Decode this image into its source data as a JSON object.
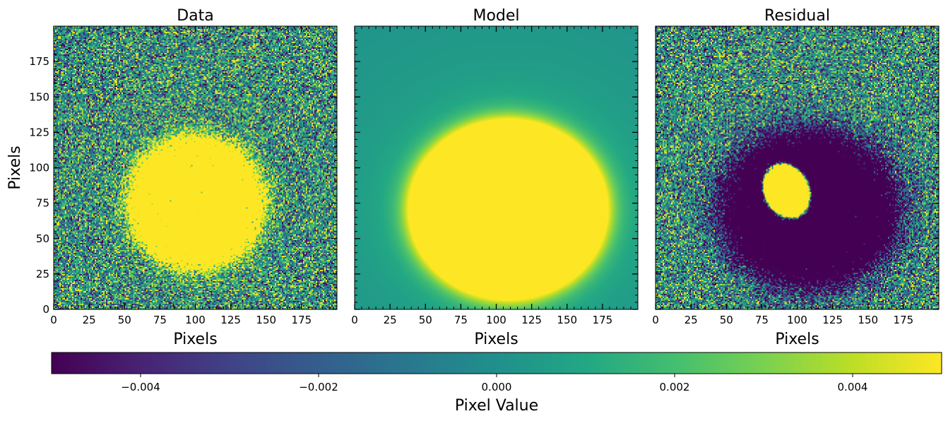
{
  "colors": {
    "vmin_color": "#440154",
    "mid_color": "#21918c",
    "vmax_color": "#fde725"
  },
  "chart_data": [
    {
      "type": "heatmap",
      "title": "Data",
      "xlabel": "Pixels",
      "ylabel": "Pixels",
      "xlim": [
        0,
        199
      ],
      "ylim": [
        0,
        199
      ],
      "xticks": [
        0,
        25,
        50,
        75,
        100,
        125,
        150,
        175
      ],
      "yticks": [
        0,
        25,
        50,
        75,
        100,
        125,
        150,
        175
      ],
      "colormap": "viridis",
      "vmin": -0.005,
      "vmax": 0.005,
      "shape": [
        200,
        200
      ],
      "description_component": {
        "kind": "noisy saturated disk",
        "center_x": 100,
        "center_y": 75,
        "radius_x": 48,
        "radius_y": 47
      }
    },
    {
      "type": "heatmap",
      "title": "Model",
      "xlabel": "Pixels",
      "ylabel": "",
      "xlim": [
        0,
        199
      ],
      "ylim": [
        0,
        199
      ],
      "xticks": [
        0,
        25,
        50,
        75,
        100,
        125,
        150,
        175
      ],
      "yticks": [],
      "colormap": "viridis",
      "vmin": -0.005,
      "vmax": 0.005,
      "shape": [
        200,
        200
      ],
      "description_component": {
        "kind": "smooth saturated ellipse",
        "center_x": 108,
        "center_y": 70,
        "radius_x": 66,
        "radius_y": 60
      }
    },
    {
      "type": "heatmap",
      "title": "Residual",
      "xlabel": "Pixels",
      "ylabel": "",
      "xlim": [
        0,
        199
      ],
      "ylim": [
        0,
        199
      ],
      "xticks": [
        0,
        25,
        50,
        75,
        100,
        125,
        150,
        175
      ],
      "yticks": [],
      "colormap": "viridis",
      "vmin": -0.005,
      "vmax": 0.005,
      "shape": [
        200,
        200
      ],
      "description_component": {
        "kind": "negative ellipse with positive inner blob",
        "neg_center_x": 108,
        "neg_center_y": 70,
        "neg_radius_x": 68,
        "neg_radius_y": 60,
        "pos_center_x": 92,
        "pos_center_y": 83,
        "pos_radius_x": 16,
        "pos_radius_y": 20,
        "pos_angle_deg": -25
      }
    }
  ],
  "colorbar": {
    "label": "Pixel Value",
    "vmin": -0.005,
    "vmax": 0.005,
    "ticks": [
      -0.004,
      -0.002,
      0.0,
      0.002,
      0.004
    ],
    "tick_labels": [
      "−0.004",
      "−0.002",
      "0.000",
      "0.002",
      "0.004"
    ]
  }
}
